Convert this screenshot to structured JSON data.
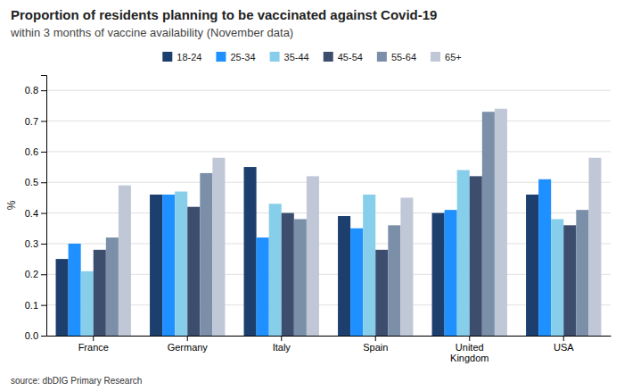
{
  "chart_data": {
    "type": "bar",
    "title": "Proportion of residents planning to be vaccinated against Covid-19",
    "subtitle": "within 3 months of vaccine availability (November data)",
    "ylabel": "%",
    "annotations": [
      "source: dbDIG Primary Research"
    ],
    "categories": [
      "France",
      "Germany",
      "Italy",
      "Spain",
      "United\nKingdom",
      "USA"
    ],
    "series": [
      {
        "name": "18-24",
        "color": "#1c3f6e",
        "values": [
          0.25,
          0.46,
          0.55,
          0.39,
          0.4,
          0.46
        ]
      },
      {
        "name": "25-34",
        "color": "#1e90ff",
        "values": [
          0.3,
          0.46,
          0.32,
          0.35,
          0.41,
          0.51
        ]
      },
      {
        "name": "35-44",
        "color": "#87ceeb",
        "values": [
          0.21,
          0.47,
          0.43,
          0.46,
          0.54,
          0.38
        ]
      },
      {
        "name": "45-54",
        "color": "#3d4d6e",
        "values": [
          0.28,
          0.42,
          0.4,
          0.28,
          0.52,
          0.36
        ]
      },
      {
        "name": "55-64",
        "color": "#7b8fa8",
        "values": [
          0.32,
          0.53,
          0.38,
          0.36,
          0.73,
          0.41
        ]
      },
      {
        "name": "65+",
        "color": "#c0c8d8",
        "values": [
          0.49,
          0.58,
          0.52,
          0.45,
          0.74,
          0.58
        ]
      }
    ],
    "ylim": [
      0,
      0.85
    ],
    "yticks": [
      {
        "value": 0,
        "label": "0.0"
      },
      0.1,
      0.2,
      0.3,
      0.4,
      0.5,
      0.6,
      0.7,
      0.8
    ],
    "grid": true,
    "legend": "top"
  }
}
